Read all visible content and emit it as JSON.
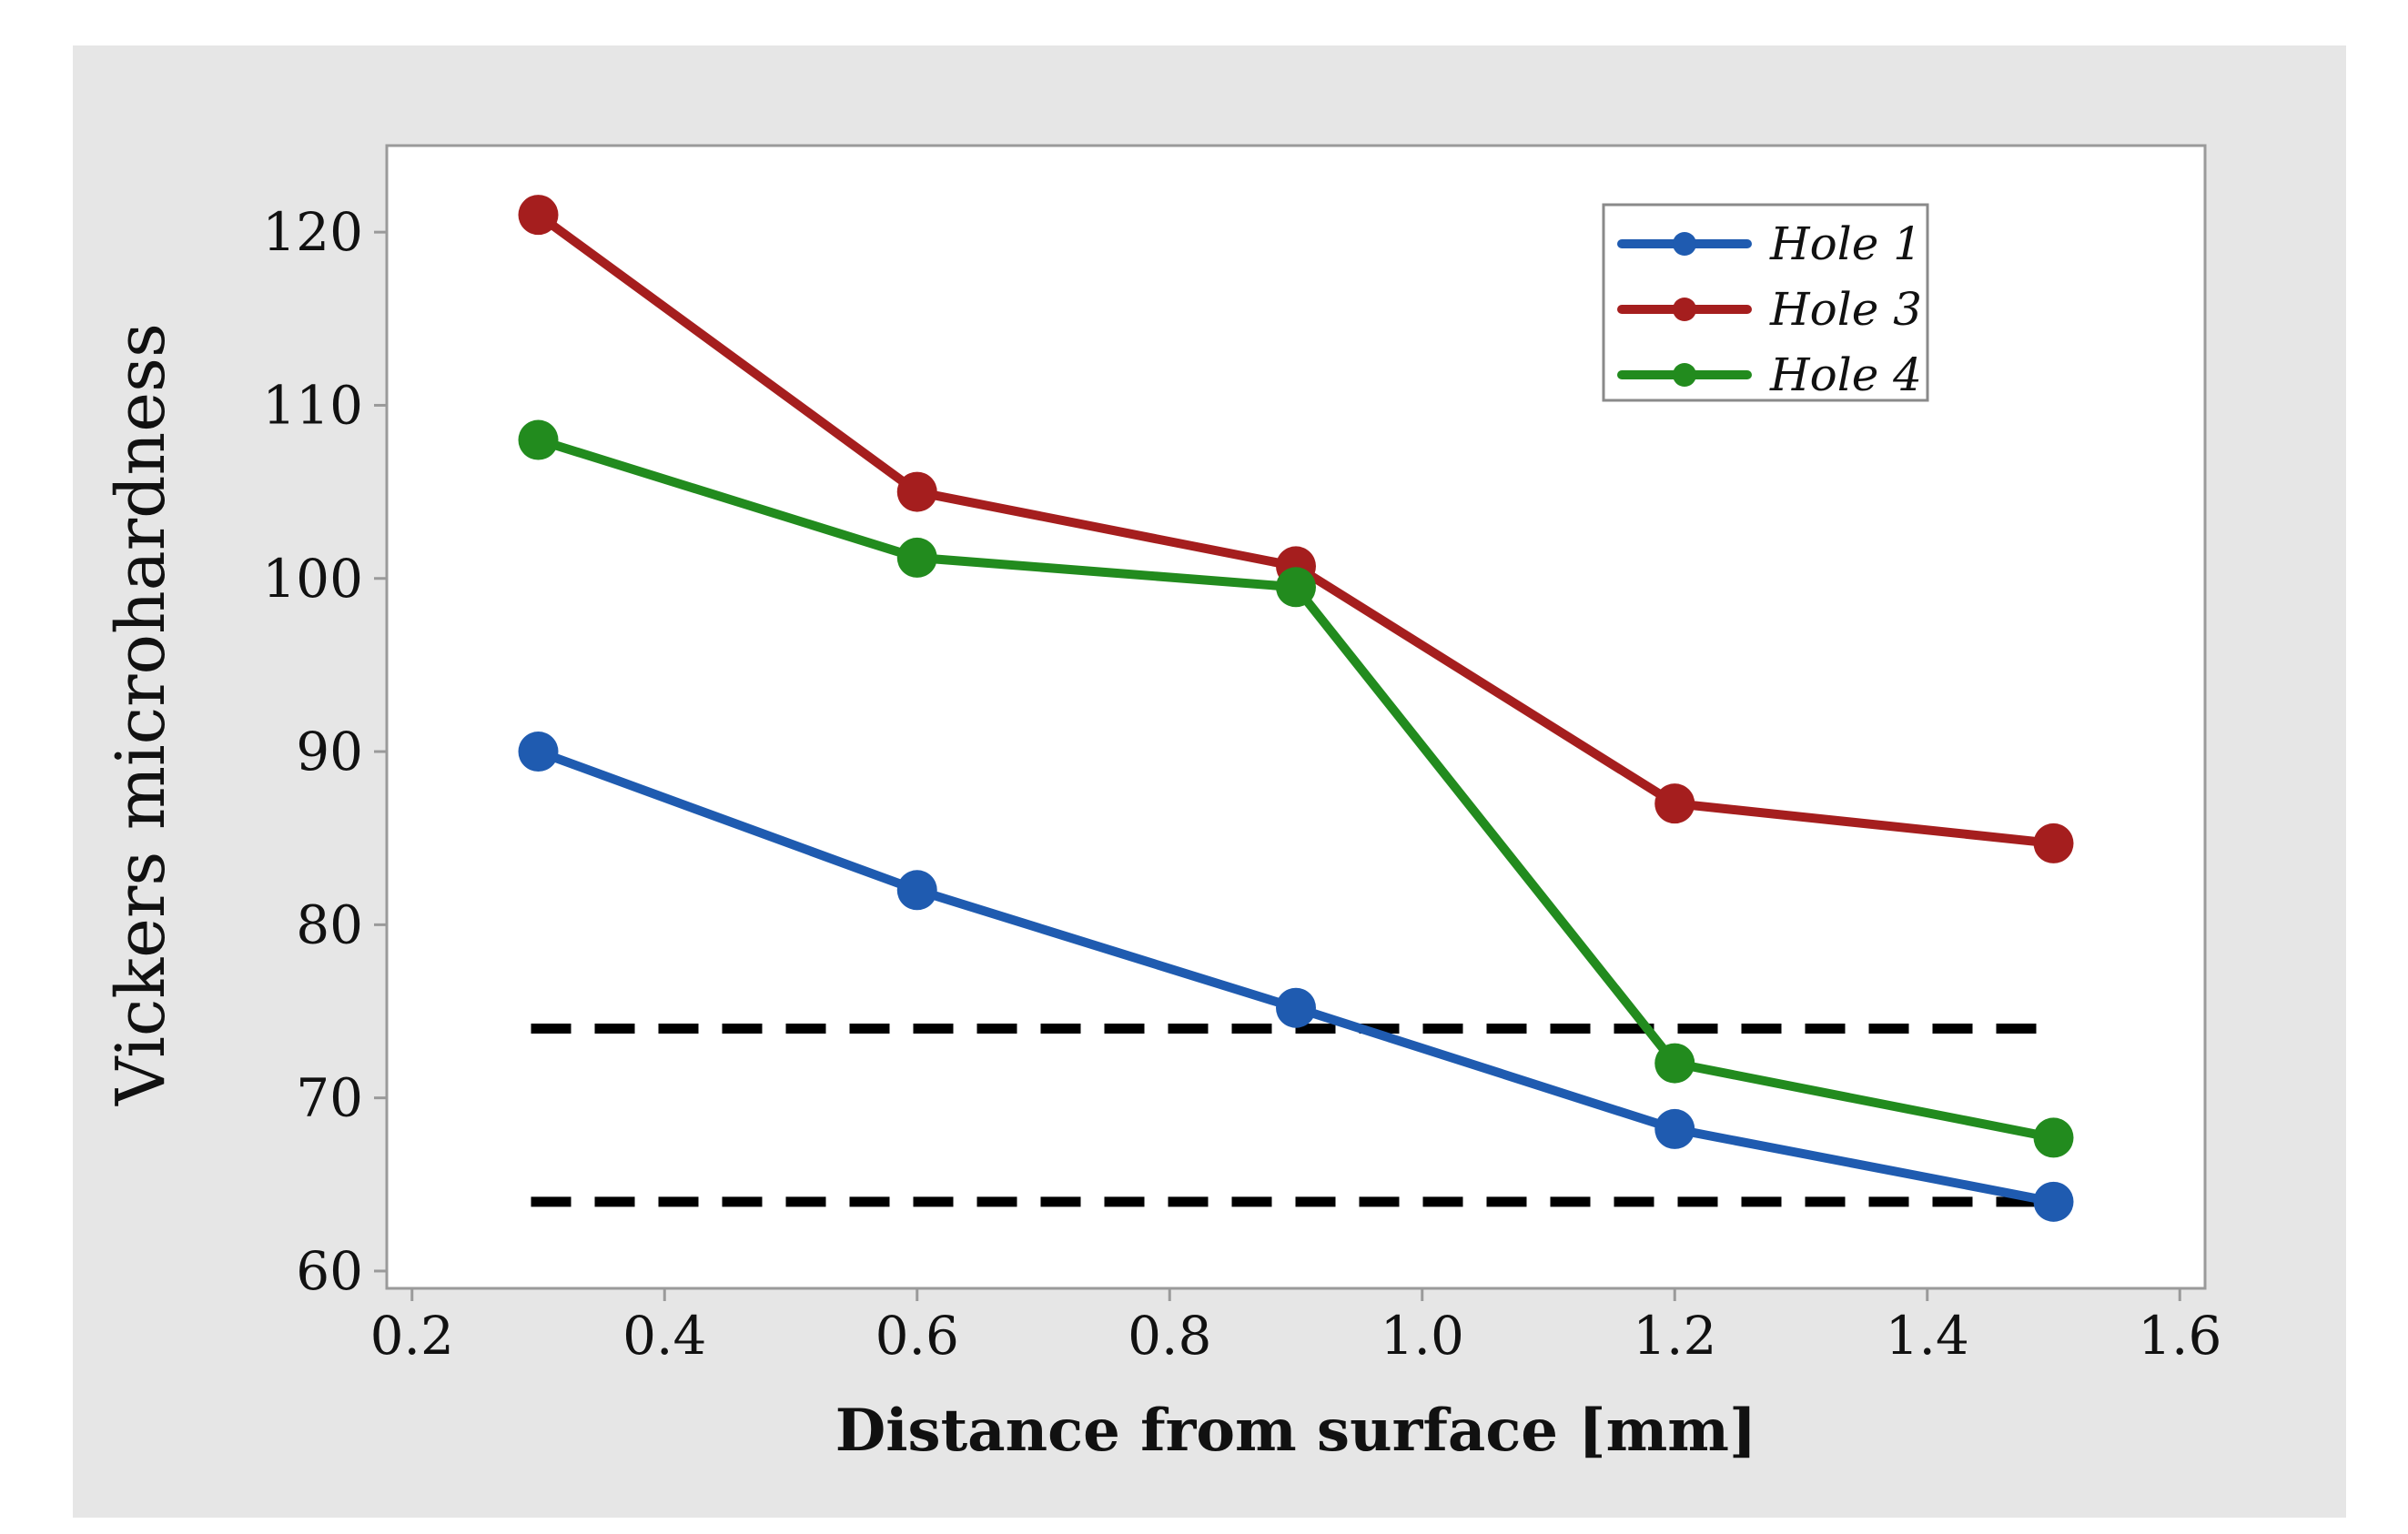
{
  "chart_data": {
    "type": "line",
    "title": "",
    "xlabel": "Distance from surface [mm]",
    "ylabel": "Vickers microhardness",
    "xlim": [
      0.18,
      1.62
    ],
    "ylim": [
      59,
      125
    ],
    "xticks": [
      0.2,
      0.4,
      0.6,
      0.8,
      1.0,
      1.2,
      1.4,
      1.6
    ],
    "xtick_labels": [
      "0.2",
      "0.4",
      "0.6",
      "0.8",
      "1.0",
      "1.2",
      "1.4",
      "1.6"
    ],
    "yticks": [
      60,
      70,
      80,
      90,
      100,
      110,
      120
    ],
    "ytick_labels": [
      "60",
      "70",
      "80",
      "90",
      "100",
      "110",
      "120"
    ],
    "grid": false,
    "legend_position": "top-right",
    "x": [
      0.3,
      0.6,
      0.9,
      1.2,
      1.5
    ],
    "series": [
      {
        "name": "Hole 1",
        "color": "#1f5bb0",
        "values": [
          90,
          82,
          75.2,
          68.2,
          64
        ]
      },
      {
        "name": "Hole 3",
        "color": "#a51e1e",
        "values": [
          121,
          105,
          100.7,
          87,
          84.7
        ]
      },
      {
        "name": "Hole 4",
        "color": "#228b1e",
        "values": [
          108,
          101.2,
          99.5,
          72,
          67.7
        ]
      }
    ],
    "reference_lines": [
      {
        "y": 74,
        "x_from": 0.3,
        "x_to": 1.5,
        "style": "dashed",
        "color": "#000000"
      },
      {
        "y": 64,
        "x_from": 0.3,
        "x_to": 1.5,
        "style": "dashed",
        "color": "#000000"
      }
    ]
  },
  "colors": {
    "outer_background": "#e6e6e6",
    "plot_background": "#ffffff",
    "frame": "#9a9a9a"
  }
}
